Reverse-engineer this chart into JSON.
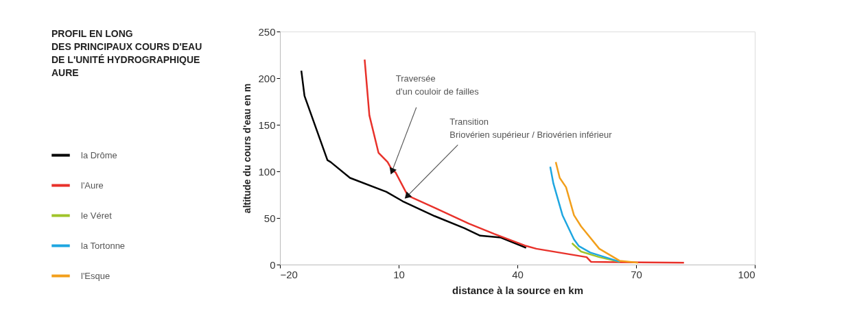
{
  "chart_data": {
    "type": "line",
    "title": "PROFIL EN LONG\nDES PRINCIPAUX COURS D'EAU\nDE L'UNITÉ HYDROGRAPHIQUE\nAURE",
    "xlabel": "distance à la source en km",
    "ylabel": "altitude du cours d'eau en m",
    "xlim": [
      -20,
      100
    ],
    "xticks": [
      -20,
      10,
      40,
      70,
      100
    ],
    "ylim": [
      0,
      250
    ],
    "yticks": [
      0,
      50,
      100,
      150,
      200,
      250
    ],
    "grid": false,
    "legend": "left",
    "marker": "none",
    "line_style": "solid",
    "series": [
      {
        "name": "la Drôme",
        "color": "#000000",
        "x": [
          -14.6,
          -13.8,
          -8.0,
          -7.2,
          -2.3,
          6.9,
          11.0,
          19.1,
          26.6,
          30.6,
          35.8,
          42.2
        ],
        "values": [
          208,
          181,
          112,
          110,
          93,
          78,
          68,
          52,
          39,
          31,
          29,
          18
        ]
      },
      {
        "name": "l'Aure",
        "color": "#e8312a",
        "x": [
          1.4,
          2.6,
          4.9,
          7.2,
          8.4,
          9.2,
          12.3,
          19.1,
          27.7,
          34.1,
          42.2,
          44.8,
          57.5,
          58.6,
          65.3,
          82.1
        ],
        "values": [
          220,
          160,
          120,
          110,
          101,
          99,
          74,
          61,
          44,
          33,
          20,
          17,
          8,
          3,
          2.5,
          2
        ]
      },
      {
        "name": "le Véret",
        "color": "#a0c42a",
        "x": [
          53.8,
          56.1,
          60.7,
          65.9
        ],
        "values": [
          23,
          14,
          8,
          3
        ]
      },
      {
        "name": "la Tortonne",
        "color": "#1ea6e0",
        "x": [
          48.3,
          49.1,
          51.4,
          54.3,
          55.5,
          58.4,
          65.9
        ],
        "values": [
          105,
          87,
          53,
          27,
          20,
          13,
          3
        ]
      },
      {
        "name": "l'Esque",
        "color": "#f29f1b",
        "x": [
          49.7,
          50.7,
          52.3,
          54.3,
          56.1,
          60.7,
          65.9,
          70.5
        ],
        "values": [
          110,
          93,
          83,
          53,
          41,
          17,
          4,
          2
        ]
      }
    ],
    "annotations": [
      {
        "text": "Traversée\nd'un couloir de failles",
        "x": 8.4,
        "y": 101
      },
      {
        "text": "Transition\nBriovérien supérieur / Briovérien inférieur",
        "x": 12.3,
        "y": 74
      }
    ]
  }
}
